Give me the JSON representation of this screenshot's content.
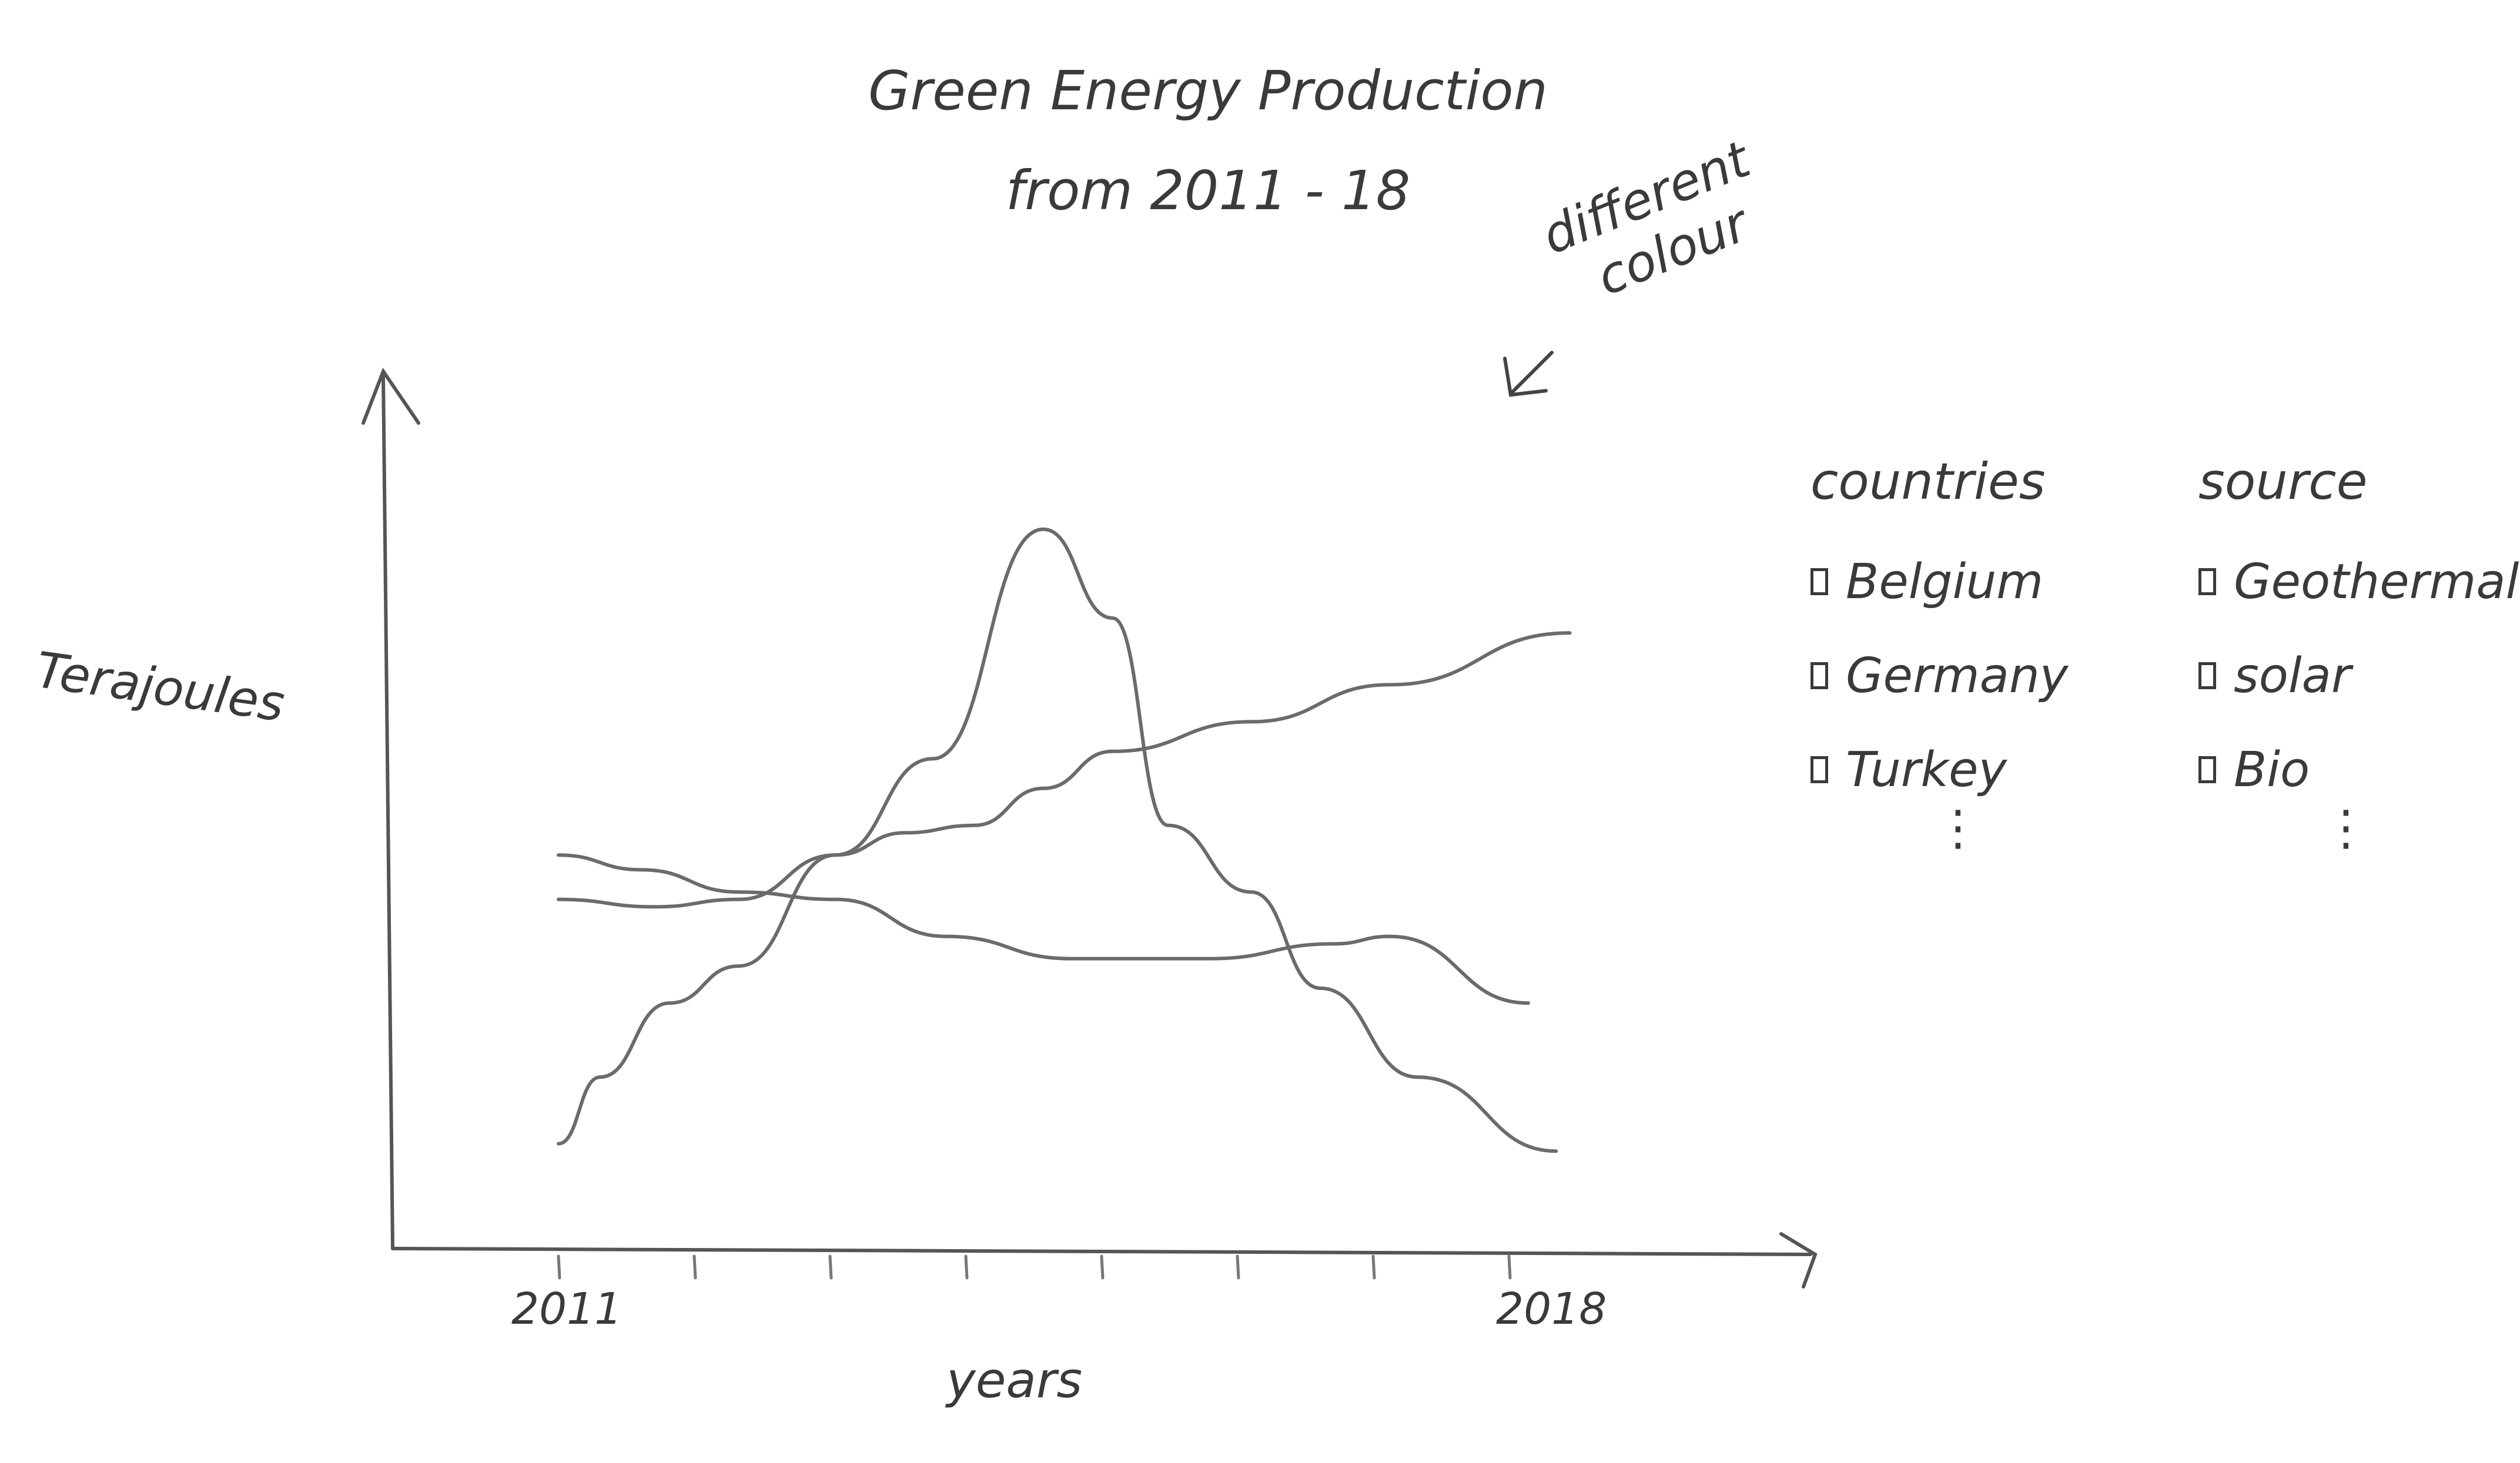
{
  "chart_data": {
    "type": "line",
    "title_lines": [
      "Green Energy Production",
      "from 2011 - 18"
    ],
    "xlabel": "years",
    "ylabel": "Terajoules",
    "x_tick_labels": [
      "2011",
      "2018"
    ],
    "xlim": [
      2011,
      2018
    ],
    "annotation_lines": [
      "different",
      "colour"
    ],
    "grid": false,
    "series": [
      {
        "color": "#6b6b6b",
        "x": [
          2011,
          2011.7,
          2012.3,
          2013,
          2013.5,
          2014,
          2014.5,
          2015,
          2016,
          2017,
          2018.3
        ],
        "values": [
          42,
          41,
          42,
          48,
          51,
          52,
          57,
          62,
          66,
          71,
          78
        ]
      },
      {
        "color": "#6b6b6b",
        "x": [
          2011,
          2011.6,
          2012.3,
          2013.0,
          2013.8,
          2014.7,
          2015.7,
          2016.6,
          2017.0,
          2018
        ],
        "values": [
          48,
          46,
          43,
          42,
          37,
          34,
          34,
          36,
          37,
          28
        ]
      },
      {
        "color": "#6b6b6b",
        "x": [
          2011,
          2011.3,
          2011.8,
          2012.3,
          2013.0,
          2013.7,
          2014.5,
          2015.0,
          2015.4,
          2016.0,
          2016.5,
          2017.2,
          2018.2
        ],
        "values": [
          9,
          18,
          28,
          33,
          48,
          61,
          92,
          80,
          52,
          43,
          30,
          18,
          8
        ]
      }
    ]
  },
  "legend": {
    "countries": {
      "heading": "countries",
      "items": [
        "Belgium",
        "Germany",
        "Turkey"
      ],
      "more": "⋮"
    },
    "source": {
      "heading": "source",
      "items": [
        "Geothermal",
        "solar",
        "Bio"
      ],
      "more": "⋮"
    }
  }
}
